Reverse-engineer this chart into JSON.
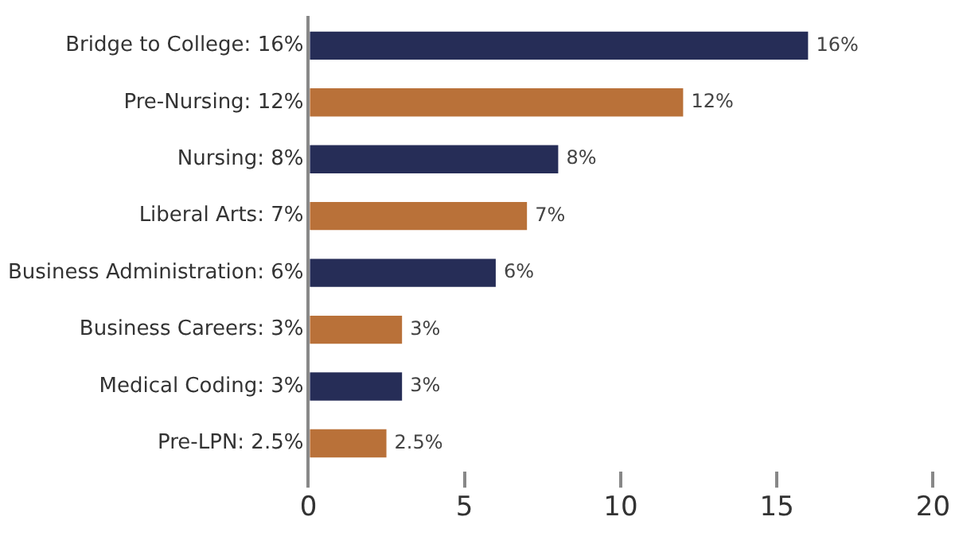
{
  "chart_data": {
    "type": "bar",
    "orientation": "horizontal",
    "categories": [
      "Bridge to College: 16%",
      "Pre-Nursing: 12%",
      "Nursing: 8%",
      "Liberal Arts: 7%",
      "Business Administration: 6%",
      "Business Careers: 3%",
      "Medical Coding: 3%",
      "Pre-LPN: 2.5%"
    ],
    "values": [
      16,
      12,
      8,
      7,
      6,
      3,
      3,
      2.5
    ],
    "colors": [
      "#262d57",
      "#b97139",
      "#262d57",
      "#b97139",
      "#262d57",
      "#b97139",
      "#262d57",
      "#b97139"
    ],
    "value_labels": [
      "16%",
      "12%",
      "8%",
      "7%",
      "6%",
      "3%",
      "3%",
      "2.5%"
    ],
    "xlim": [
      0,
      20
    ],
    "xticks": [
      0,
      5,
      10,
      15,
      20
    ],
    "grid": false,
    "legend": false
  }
}
